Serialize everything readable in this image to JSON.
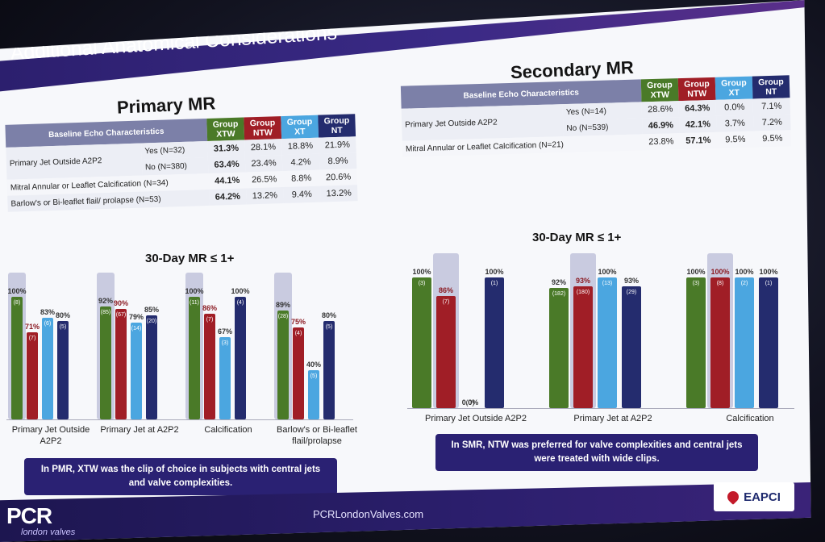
{
  "slide_title": "Additional Anatomical Considerations",
  "groups": [
    "Group XTW",
    "Group NTW",
    "Group XT",
    "Group NT"
  ],
  "colors": {
    "xtw": "#4a7a28",
    "ntw": "#a01e26",
    "xt": "#4ba6e0",
    "nt": "#242c6e"
  },
  "primary": {
    "title": "Primary MR",
    "header": "Baseline Echo Characteristics",
    "g1": "Group XTW",
    "g2": "Group NTW",
    "g3": "Group XT",
    "g4": "Group NT",
    "r1_label": "Primary Jet Outside A2P2",
    "r1a_sub": "Yes (N=32)",
    "r1a": [
      "31.3%",
      "28.1%",
      "18.8%",
      "21.9%"
    ],
    "r1b_sub": "No (N=380)",
    "r1b": [
      "63.4%",
      "23.4%",
      "4.2%",
      "8.9%"
    ],
    "r2_label": "Mitral Annular or Leaflet Calcification (N=34)",
    "r2": [
      "44.1%",
      "26.5%",
      "8.8%",
      "20.6%"
    ],
    "r3_label": "Barlow's or Bi-leaflet flail/ prolapse (N=53)",
    "r3": [
      "64.2%",
      "13.2%",
      "9.4%",
      "13.2%"
    ],
    "chart_title": "30-Day MR ≤ 1+"
  },
  "secondary": {
    "title": "Secondary MR",
    "header": "Baseline Echo Characteristics",
    "g1": "Group XTW",
    "g2": "Group NTW",
    "g3": "Group XT",
    "g4": "Group NT",
    "r1_label": "Primary Jet Outside A2P2",
    "r1a_sub": "Yes (N=14)",
    "r1a": [
      "28.6%",
      "64.3%",
      "0.0%",
      "7.1%"
    ],
    "r1b_sub": "No (N=539)",
    "r1b": [
      "46.9%",
      "42.1%",
      "3.7%",
      "7.2%"
    ],
    "r2_label": "Mitral Annular or Leaflet Calcification (N=21)",
    "r2": [
      "23.8%",
      "57.1%",
      "9.5%",
      "9.5%"
    ],
    "chart_title": "30-Day MR ≤ 1+"
  },
  "chart_data": [
    {
      "type": "bar",
      "title": "Primary MR 30-Day MR ≤ 1+",
      "categories": [
        "Primary Jet Outside A2P2",
        "Primary Jet at A2P2",
        "Calcification",
        "Barlow's or Bi-leaflet flail/prolapse"
      ],
      "series": [
        {
          "name": "Group XTW",
          "values": [
            100,
            92,
            100,
            89
          ],
          "n": [
            "(8)",
            "(85)",
            "(11)",
            "(28)"
          ]
        },
        {
          "name": "Group NTW",
          "values": [
            71,
            90,
            86,
            75
          ],
          "n": [
            "(7)",
            "(67)",
            "(7)",
            "(4)"
          ]
        },
        {
          "name": "Group XT",
          "values": [
            83,
            79,
            67,
            40
          ],
          "n": [
            "(6)",
            "(14)",
            "(3)",
            "(5)"
          ]
        },
        {
          "name": "Group NT",
          "values": [
            80,
            85,
            100,
            80
          ],
          "n": [
            "(5)",
            "(20)",
            "(4)",
            "(5)"
          ]
        }
      ],
      "labels": [
        [
          "100%",
          "71%",
          "83%",
          "80%"
        ],
        [
          "92%",
          "90%",
          "79%",
          "85%"
        ],
        [
          "100%",
          "86%",
          "67%",
          "100%"
        ],
        [
          "89%",
          "75%",
          "40%",
          "80%"
        ]
      ],
      "ylim": [
        0,
        100
      ]
    },
    {
      "type": "bar",
      "title": "Secondary MR 30-Day MR ≤ 1+",
      "categories": [
        "Primary Jet Outside A2P2",
        "Primary Jet at A2P2",
        "Calcification"
      ],
      "series": [
        {
          "name": "Group XTW",
          "values": [
            100,
            92,
            100
          ],
          "n": [
            "(3)",
            "(182)",
            "(3)"
          ]
        },
        {
          "name": "Group NTW",
          "values": [
            86,
            93,
            100
          ],
          "n": [
            "(7)",
            "(180)",
            "(8)"
          ]
        },
        {
          "name": "Group XT",
          "values": [
            0,
            100,
            100
          ],
          "n": [
            "(0)",
            "(13)",
            "(2)"
          ]
        },
        {
          "name": "Group NT",
          "values": [
            100,
            93,
            100
          ],
          "n": [
            "(1)",
            "(29)",
            "(1)"
          ]
        }
      ],
      "labels": [
        [
          "100%",
          "86%",
          "0.0%",
          "100%"
        ],
        [
          "92%",
          "93%",
          "100%",
          "93%"
        ],
        [
          "100%",
          "100%",
          "100%",
          "100%"
        ]
      ],
      "ylim": [
        0,
        100
      ]
    }
  ],
  "notes": {
    "pmr": "In PMR, XTW was the clip of choice in subjects with central jets and valve complexities.",
    "smr": "In SMR, NTW was preferred for valve complexities and central jets were treated with wide clips."
  },
  "footer": {
    "logo": "PCR",
    "logo_sub": "london valves",
    "url": "PCRLondonValves.com",
    "badge": "EAPCI"
  }
}
